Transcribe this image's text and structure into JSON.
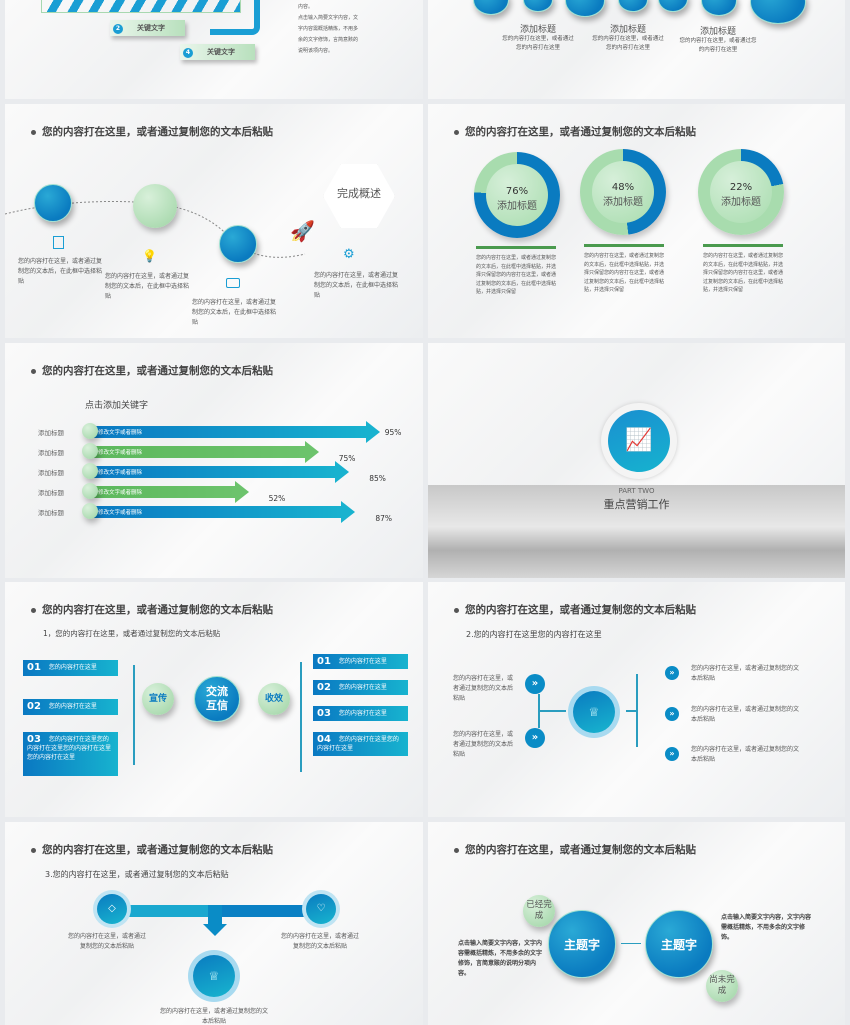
{
  "common_title": "您的内容打在这里，或者通过复制您的文本后粘贴",
  "slide1": {
    "badges": [
      "2",
      "4"
    ],
    "keyword": "关键文字",
    "side_text_1": "内容。",
    "side_text_2": "点击输入简要文字内容，文字内容需概括精炼，不用多余的文字修饰，言简意赅的说明该项内容。"
  },
  "slide2": {
    "items": [
      {
        "title": "添加标题",
        "text": "您的内容打在这里，或者通过您的内容打在这里"
      },
      {
        "title": "添加标题",
        "text": "您的内容打在这里，或者通过您的内容打在这里"
      },
      {
        "title": "添加标题",
        "text": "您的内容打在这里，或者通过您的内容打在这里"
      }
    ]
  },
  "slide3": {
    "hexagon": "完成概述",
    "step_text": "您的内容打在这里，或者通过复制您的文本后，在此框中选择粘贴",
    "icons": [
      "document-icon",
      "lightbulb-icon",
      "inbox-icon",
      "gear-icon",
      "rocket-icon"
    ]
  },
  "slide4": {
    "items": [
      {
        "percent": "76%",
        "value": 76,
        "label": "添加标题",
        "text": "您的内容打在这里，或者通过复制您的文本后，在此框中选择粘贴，并选择只保留您的内容打在这里，或者通过复制您的文本后，在此框中选择粘贴，并选择只保留"
      },
      {
        "percent": "48%",
        "value": 48,
        "label": "添加标题",
        "text": "您的内容打在这里，或者通过复制您的文本后，在此框中选择粘贴，并选择只保留您的内容打在这里，或者通过复制您的文本后，在此框中选择粘贴，并选择只保留"
      },
      {
        "percent": "22%",
        "value": 22,
        "label": "添加标题",
        "text": "您的内容打在这里，或者通过复制您的文本后，在此框中选择粘贴，并选择只保留您的内容打在这里，或者通过复制您的文本后，在此框中选择粘贴，并选择只保留"
      }
    ],
    "colors": {
      "blue": "#0a7bc0",
      "green": "#a8dcae",
      "rule": "#4a9a4e"
    }
  },
  "slide5": {
    "heading": "点击添加关键字",
    "chart_data": {
      "type": "bar",
      "categories": [
        "添加标题",
        "添加标题",
        "添加标题",
        "添加标题",
        "添加标题"
      ],
      "bar_text": "修改文字或者删除",
      "values": [
        95,
        75,
        85,
        52,
        87
      ],
      "labels": [
        "95%",
        "75%",
        "85%",
        "52%",
        "87%"
      ],
      "colors": [
        "#0a8cc6",
        "#5cb85c",
        "#0a8cc6",
        "#5cb85c",
        "#0a8cc6"
      ]
    }
  },
  "slide6": {
    "part": "PART TWO",
    "title": "重点营销工作",
    "icon": "presentation-icon"
  },
  "slide7": {
    "subtitle": "1，您的内容打在这里，或者通过复制您的文本后粘贴",
    "left": [
      {
        "num": "01",
        "text": "您的内容打在这里"
      },
      {
        "num": "02",
        "text": "您的内容打在这里"
      },
      {
        "num": "03",
        "text": "您的内容打在这里您的内容打在这里您的内容打在这里您的内容打在这里"
      }
    ],
    "right": [
      {
        "num": "01",
        "text": "您的内容打在这里"
      },
      {
        "num": "02",
        "text": "您的内容打在这里"
      },
      {
        "num": "03",
        "text": "您的内容打在这里"
      },
      {
        "num": "04",
        "text": "您的内容打在这里您的内容打在这里"
      }
    ],
    "left_node": "宣传",
    "center_node": "交流互信",
    "right_node": "收效"
  },
  "slide8": {
    "subtitle": "2.您的内容打在这里您的内容打在这里",
    "left": [
      "您的内容打在这里，或者通过复制您的文本后粘贴",
      "您的内容打在这里，或者通过复制您的文本后粘贴"
    ],
    "right": [
      "您的内容打在这里，或者通过复制您的文本后粘贴",
      "您的内容打在这里，或者通过复制您的文本后粘贴",
      "您的内容打在这里，或者通过复制您的文本后粘贴"
    ]
  },
  "slide9": {
    "subtitle": "3.您的内容打在这里，或者通过复制您的文本后粘贴",
    "left_text": "您的内容打在这里，或者通过复制您的文本后粘贴",
    "right_text": "您的内容打在这里，或者通过复制您的文本后粘贴",
    "bottom_text": "您的内容打在这里，或者通过复制您的文本后粘贴"
  },
  "slide10": {
    "topic1": "主题字",
    "topic2": "主题字",
    "done": "已经完成",
    "pending": "尚未完成",
    "left_text": "点击输入简要文字内容，文字内容需概括精炼，不用多余的文字修饰，言简意赅的说明分项内容。",
    "right_text": "点击输入简要文字内容，文字内容需概括精炼，不用多余的文字修饰。"
  }
}
